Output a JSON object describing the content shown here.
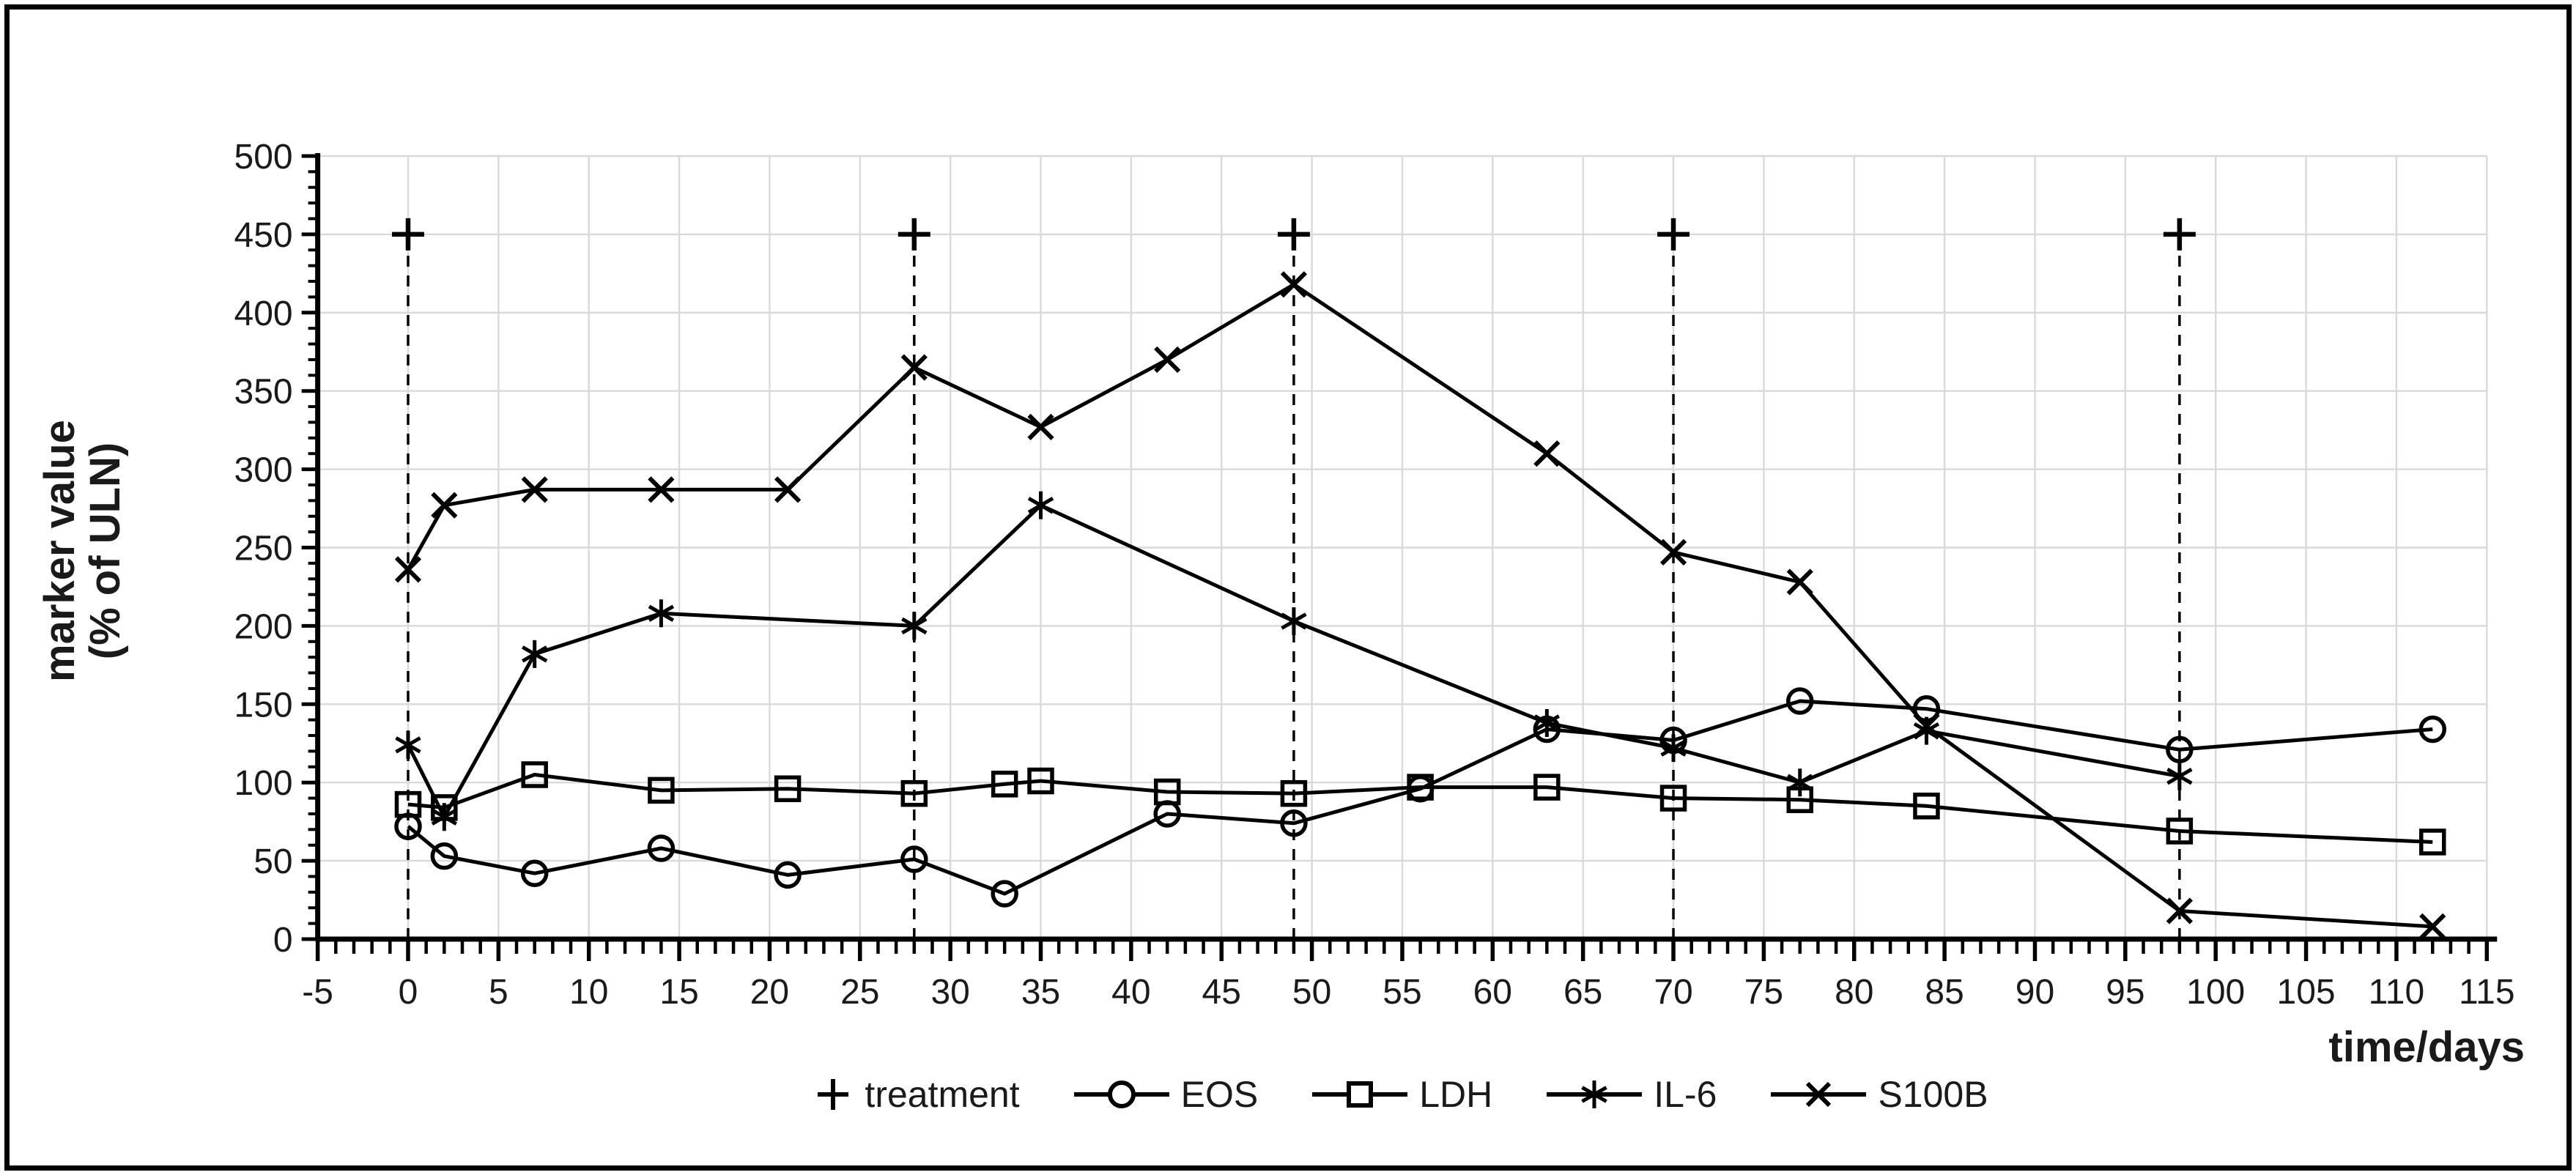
{
  "figure": {
    "y_axis_title_line1": "marker value",
    "y_axis_title_line2": "(% of ULN)",
    "x_axis_title": "time/days"
  },
  "legend": {
    "items": [
      {
        "label": "treatment",
        "marker": "plus"
      },
      {
        "label": "EOS",
        "marker": "circle"
      },
      {
        "label": "LDH",
        "marker": "square"
      },
      {
        "label": "IL-6",
        "marker": "asterisk"
      },
      {
        "label": "S100B",
        "marker": "x"
      }
    ]
  },
  "colors": {
    "line": "#000000",
    "grid": "#d9d9d9",
    "text": "#1a1a1a",
    "background": "#ffffff"
  },
  "chart_data": {
    "type": "line",
    "title": "",
    "xlabel": "time/days",
    "ylabel": "marker value (% of ULN)",
    "xlim": [
      -5,
      115
    ],
    "ylim": [
      0,
      500
    ],
    "x_ticks": [
      -5,
      0,
      5,
      10,
      15,
      20,
      25,
      30,
      35,
      40,
      45,
      50,
      55,
      60,
      65,
      70,
      75,
      80,
      85,
      90,
      95,
      100,
      105,
      110,
      115
    ],
    "y_ticks": [
      0,
      50,
      100,
      150,
      200,
      250,
      300,
      350,
      400,
      450,
      500
    ],
    "x_minor_step": 1,
    "y_minor_step": 10,
    "grid": true,
    "legend_position": "bottom",
    "treatment_days": [
      0,
      28,
      49,
      70,
      98
    ],
    "treatment_marker_value": 450,
    "series": [
      {
        "name": "EOS",
        "marker": "circle",
        "x": [
          0,
          2,
          7,
          14,
          21,
          28,
          33,
          42,
          49,
          56,
          63,
          70,
          77,
          84,
          98,
          112
        ],
        "y": [
          72,
          53,
          42,
          58,
          41,
          51,
          29,
          80,
          74,
          96,
          134,
          127,
          152,
          147,
          121,
          134
        ]
      },
      {
        "name": "LDH",
        "marker": "square",
        "x": [
          0,
          2,
          7,
          14,
          21,
          28,
          33,
          35,
          42,
          49,
          56,
          63,
          70,
          77,
          84,
          98,
          112
        ],
        "y": [
          86,
          84,
          105,
          95,
          96,
          93,
          99,
          101,
          94,
          93,
          97,
          97,
          90,
          89,
          85,
          69,
          62
        ]
      },
      {
        "name": "IL-6",
        "marker": "asterisk",
        "x": [
          0,
          2,
          7,
          14,
          28,
          35,
          49,
          63,
          70,
          77,
          84,
          98
        ],
        "y": [
          124,
          78,
          182,
          208,
          200,
          277,
          203,
          138,
          122,
          100,
          133,
          104
        ]
      },
      {
        "name": "S100B",
        "marker": "x",
        "x": [
          0,
          2,
          7,
          14,
          21,
          28,
          35,
          42,
          49,
          63,
          70,
          77,
          84,
          98,
          112
        ],
        "y": [
          236,
          277,
          287,
          287,
          287,
          365,
          327,
          370,
          418,
          310,
          247,
          228,
          136,
          18,
          8
        ]
      }
    ]
  }
}
